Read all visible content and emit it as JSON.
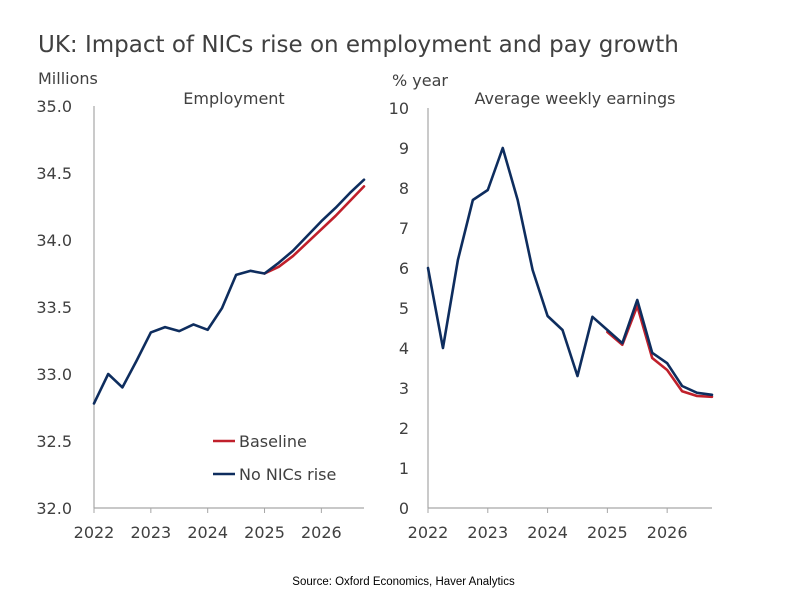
{
  "title": "UK: Impact of NICs rise on employment and pay growth",
  "source": "Source: Oxford Economics, Haver Analytics",
  "colors": {
    "baseline": "#C0202B",
    "no_nics": "#0E2D5E",
    "axis": "#A6A6A6",
    "text": "#404040"
  },
  "chart_data": [
    {
      "type": "line",
      "title": "Employment",
      "ylabel": "Millions",
      "xlabel": "",
      "ylim": [
        32.0,
        35.0
      ],
      "yticks": [
        "32.0",
        "32.5",
        "33.0",
        "33.5",
        "34.0",
        "34.5",
        "35.0"
      ],
      "yticks_values": [
        32.0,
        32.5,
        33.0,
        33.5,
        34.0,
        34.5,
        35.0
      ],
      "xlim": [
        2022.0,
        2026.75
      ],
      "xticks": [
        "2022",
        "2023",
        "2024",
        "2025",
        "2026"
      ],
      "xticks_values": [
        2022,
        2023,
        2024,
        2025,
        2026
      ],
      "grid": false,
      "legend": {
        "placement": "bottom-center",
        "entries": [
          "Baseline",
          "No NICs rise"
        ]
      },
      "series": [
        {
          "name": "Baseline",
          "x": [
            2025.0,
            2025.25,
            2025.5,
            2025.75,
            2026.0,
            2026.25,
            2026.5,
            2026.75
          ],
          "y": [
            33.75,
            33.8,
            33.88,
            33.98,
            34.08,
            34.18,
            34.29,
            34.4
          ]
        },
        {
          "name": "No NICs rise",
          "x": [
            2022.0,
            2022.25,
            2022.5,
            2022.75,
            2023.0,
            2023.25,
            2023.5,
            2023.75,
            2024.0,
            2024.25,
            2024.5,
            2024.75,
            2025.0,
            2025.25,
            2025.5,
            2025.75,
            2026.0,
            2026.25,
            2026.5,
            2026.75
          ],
          "y": [
            32.78,
            33.0,
            32.9,
            33.1,
            33.31,
            33.35,
            33.32,
            33.37,
            33.33,
            33.49,
            33.74,
            33.77,
            33.75,
            33.83,
            33.92,
            34.03,
            34.14,
            34.24,
            34.35,
            34.45
          ]
        }
      ]
    },
    {
      "type": "line",
      "title": "Average weekly earnings",
      "ylabel": "% year",
      "xlabel": "",
      "ylim": [
        0,
        10
      ],
      "yticks": [
        "0",
        "1",
        "2",
        "3",
        "4",
        "5",
        "6",
        "7",
        "8",
        "9",
        "10"
      ],
      "yticks_values": [
        0,
        1,
        2,
        3,
        4,
        5,
        6,
        7,
        8,
        9,
        10
      ],
      "xlim": [
        2022.0,
        2026.75
      ],
      "xticks": [
        "2022",
        "2023",
        "2024",
        "2025",
        "2026"
      ],
      "xticks_values": [
        2022,
        2023,
        2024,
        2025,
        2026
      ],
      "grid": false,
      "series": [
        {
          "name": "Baseline",
          "x": [
            2025.0,
            2025.25,
            2025.5,
            2025.75,
            2026.0,
            2026.25,
            2026.5,
            2026.75
          ],
          "y": [
            4.4,
            4.08,
            5.05,
            3.75,
            3.45,
            2.92,
            2.8,
            2.78
          ]
        },
        {
          "name": "No NICs rise",
          "x": [
            2022.0,
            2022.25,
            2022.5,
            2022.75,
            2023.0,
            2023.25,
            2023.5,
            2023.75,
            2024.0,
            2024.25,
            2024.5,
            2024.75,
            2025.0,
            2025.25,
            2025.5,
            2025.75,
            2026.0,
            2026.25,
            2026.5,
            2026.75
          ],
          "y": [
            6.0,
            4.0,
            6.2,
            7.7,
            7.95,
            9.0,
            7.7,
            5.95,
            4.8,
            4.45,
            3.3,
            4.78,
            4.45,
            4.12,
            5.2,
            3.88,
            3.62,
            3.05,
            2.88,
            2.83
          ]
        }
      ]
    }
  ]
}
